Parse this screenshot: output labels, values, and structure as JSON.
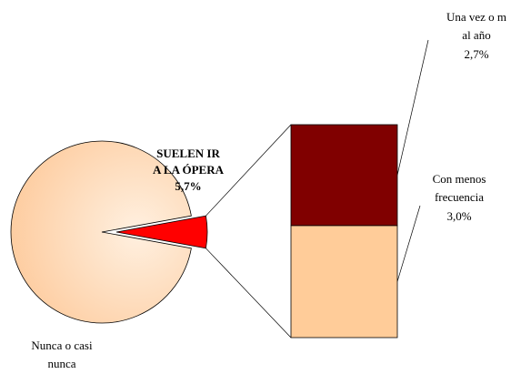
{
  "chart_data": {
    "type": "pie",
    "categories": [
      [
        "Nunca o casi",
        "nunca"
      ],
      [
        "SUELEN IR",
        "A LA ÓPERA"
      ]
    ],
    "values": [
      94.3,
      5.7
    ],
    "value_labels": [
      null,
      "5,7%"
    ],
    "colors": [
      "#fdd3ad",
      "#ff0000"
    ],
    "breakdown": {
      "type": "bar",
      "categories": [
        [
          "Con menos",
          "frecuencia"
        ],
        [
          "Una vez o m",
          "al año"
        ]
      ],
      "values": [
        3.0,
        2.7
      ],
      "value_labels": [
        "3,0%",
        "2,7%"
      ],
      "colors": [
        "#ffcc99",
        "#800000"
      ]
    }
  }
}
